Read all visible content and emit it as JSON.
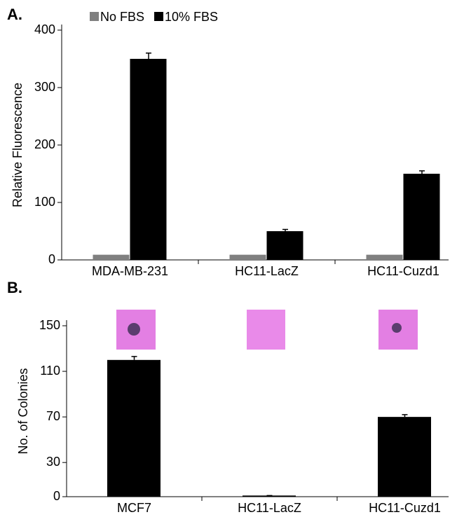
{
  "chart_data": [
    {
      "type": "bar",
      "title": "A.",
      "ylabel": "Relative Fluorescence",
      "categories": [
        "MDA-MB-231",
        "HC11-LacZ",
        "HC11-Cuzd1"
      ],
      "series": [
        {
          "name": "No FBS",
          "color": "#808080",
          "values": [
            9,
            9,
            9
          ]
        },
        {
          "name": "10% FBS",
          "color": "#000000",
          "values": [
            350,
            50,
            150
          ],
          "errors": [
            10,
            3,
            5
          ]
        }
      ],
      "ylim": [
        0,
        400
      ],
      "yticks": [
        0,
        100,
        200,
        300,
        400
      ]
    },
    {
      "type": "bar",
      "title": "B.",
      "ylabel": "No. of Colonies",
      "categories": [
        "MCF7",
        "HC11-LacZ",
        "HC11-Cuzd1"
      ],
      "values": [
        120,
        1,
        70
      ],
      "errors": [
        3,
        0,
        2
      ],
      "color": "#000000",
      "ylim": [
        0,
        150
      ],
      "yticks": [
        0,
        30,
        70,
        110,
        150
      ]
    }
  ]
}
